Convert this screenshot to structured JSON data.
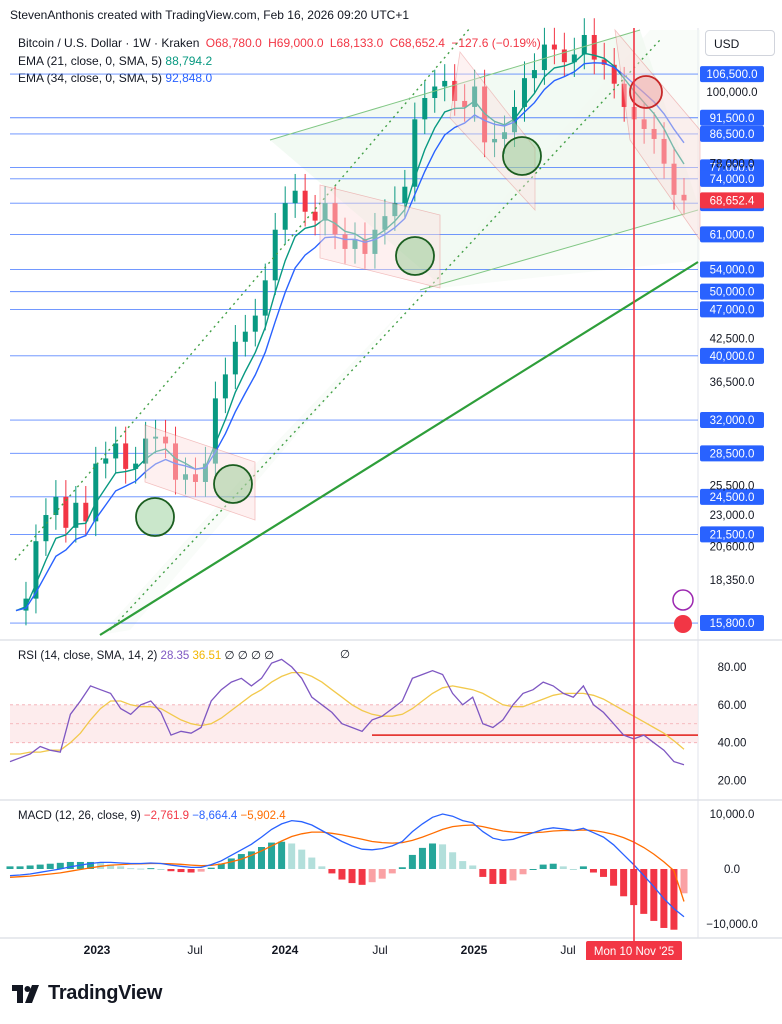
{
  "header": {
    "credit": "StevenAnthonis created with TradingView.com, Feb 16, 2026 09:20 UTC+1"
  },
  "symbol": {
    "name": "Bitcoin / U.S. Dollar · 1W · Kraken",
    "open": "O68,780.0",
    "high": "H69,000.0",
    "low": "L68,133.0",
    "close": "C68,652.4",
    "change": "−127.6 (−0.19%)"
  },
  "indicators": [
    {
      "label": "EMA (21, close, 0, SMA, 5)",
      "value": "88,794.2"
    },
    {
      "label": "EMA (34, close, 0, SMA, 5)",
      "value": "92,848.0"
    }
  ],
  "currency_button": "USD",
  "colors": {
    "up": "#089981",
    "down": "#f23645",
    "level_line": "#2962ff",
    "ema21": "#089981",
    "ema34": "#2962ff"
  },
  "rsi": {
    "label": "RSI (14, close, SMA, 14, 2)",
    "value": "28.35",
    "ma_value": "36.51",
    "div_markers": "∅ ∅ ∅ ∅",
    "div_marker2": "∅"
  },
  "macd": {
    "label": "MACD (12, 26, close, 9)",
    "histogram": "−2,761.9",
    "macd": "−8,664.4",
    "signal": "−5,902.4"
  },
  "footer": {
    "brand": "TradingView"
  },
  "chart_data": {
    "type": "candlestick",
    "price_axis": {
      "scale": "log",
      "min": 15000,
      "max": 125000
    },
    "highlighted_levels": [
      "106,500.0",
      "91,500.0",
      "86,500.0",
      "77,000.0",
      "74,000.0",
      "68,000.0",
      "61,000.0",
      "54,000.0",
      "50,000.0",
      "47,000.0",
      "40,000.0",
      "32,000.0",
      "28,500.0",
      "24,500.0",
      "21,500.0",
      "15,800.0"
    ],
    "plain_ticks": [
      "100,000.0",
      "78,000.0",
      "42,500.0",
      "36,500.0",
      "25,500.0",
      "23,000.0",
      "20,600.0",
      "18,350.0"
    ],
    "last_price": "68,652.4",
    "x_ticks": [
      "2023",
      "Jul",
      "2024",
      "Jul",
      "2025",
      "Jul"
    ],
    "crosshair_label": "Mon 10 Nov '25",
    "series": [
      {
        "name": "BTCUSD weekly close (approx.)",
        "values": [
          16500,
          17200,
          21000,
          23000,
          24500,
          22000,
          24000,
          22500,
          27500,
          28000,
          29500,
          27000,
          27500,
          30000,
          30200,
          29500,
          26000,
          26500,
          25800,
          27500,
          34500,
          37500,
          42000,
          43500,
          46000,
          52000,
          62000,
          68000,
          71000,
          66000,
          64000,
          68000,
          61000,
          58000,
          60000,
          57000,
          62000,
          65000,
          68000,
          72000,
          91000,
          98000,
          102000,
          104000,
          97000,
          95000,
          102000,
          84000,
          85000,
          87000,
          95000,
          105000,
          108000,
          118000,
          116000,
          111000,
          114000,
          122000,
          112000,
          110000,
          103000,
          95000,
          91000,
          88000,
          85000,
          78000,
          70000,
          68652
        ]
      }
    ],
    "rsi_axis": {
      "ticks": [
        "80.00",
        "60.00",
        "40.00",
        "20.00"
      ]
    },
    "rsi_series": [
      30,
      32,
      34,
      38,
      36,
      35,
      55,
      62,
      70,
      68,
      66,
      58,
      55,
      60,
      62,
      56,
      44,
      46,
      45,
      48,
      62,
      68,
      72,
      74,
      70,
      74,
      82,
      84,
      80,
      74,
      64,
      60,
      56,
      50,
      48,
      46,
      52,
      54,
      58,
      62,
      74,
      76,
      78,
      76,
      66,
      60,
      64,
      50,
      48,
      52,
      60,
      66,
      68,
      72,
      70,
      66,
      64,
      70,
      60,
      56,
      50,
      44,
      42,
      44,
      40,
      36,
      30,
      28.35
    ],
    "rsi_ma_series": [
      34,
      34,
      35,
      35,
      36,
      36,
      40,
      45,
      52,
      58,
      62,
      62,
      60,
      59,
      59,
      58,
      55,
      52,
      50,
      49,
      50,
      53,
      57,
      61,
      65,
      68,
      72,
      75,
      77,
      77,
      75,
      72,
      68,
      64,
      60,
      57,
      55,
      54,
      54,
      55,
      58,
      62,
      66,
      69,
      70,
      69,
      68,
      66,
      63,
      60,
      59,
      59,
      61,
      63,
      65,
      66,
      66,
      66,
      65,
      63,
      60,
      57,
      54,
      51,
      48,
      45,
      41,
      36.51
    ],
    "macd_axis": {
      "ticks": [
        "10,000.0",
        "0.0",
        "−10,000.0"
      ]
    },
    "macd_series": [
      -1200,
      -1100,
      -900,
      -600,
      -300,
      0,
      400,
      700,
      1000,
      1200,
      1200,
      1100,
      1000,
      1000,
      1100,
      1000,
      700,
      500,
      300,
      300,
      800,
      1500,
      2500,
      3500,
      4500,
      5800,
      7200,
      8200,
      8800,
      8600,
      8000,
      7000,
      6000,
      5000,
      4200,
      3600,
      3500,
      3700,
      4200,
      5000,
      6800,
      8200,
      9400,
      10000,
      9600,
      8800,
      8400,
      6800,
      5600,
      5200,
      5400,
      6000,
      6600,
      7200,
      7500,
      7300,
      7000,
      7400,
      6600,
      5800,
      4400,
      2600,
      800,
      -1200,
      -3200,
      -5400,
      -7200,
      -8664
    ],
    "signal_series": [
      -1500,
      -1400,
      -1300,
      -1100,
      -900,
      -700,
      -400,
      -100,
      200,
      500,
      700,
      800,
      900,
      950,
      1000,
      1000,
      950,
      850,
      700,
      600,
      650,
      900,
      1300,
      1800,
      2500,
      3300,
      4200,
      5100,
      5900,
      6400,
      6700,
      6700,
      6500,
      6200,
      5800,
      5400,
      5000,
      4800,
      4700,
      4800,
      5200,
      5800,
      6500,
      7200,
      7700,
      7900,
      8000,
      7700,
      7300,
      6900,
      6700,
      6600,
      6600,
      6700,
      6900,
      7000,
      7000,
      7100,
      7000,
      6700,
      6300,
      5700,
      4900,
      3900,
      2700,
      1300,
      -300,
      -5902
    ]
  }
}
